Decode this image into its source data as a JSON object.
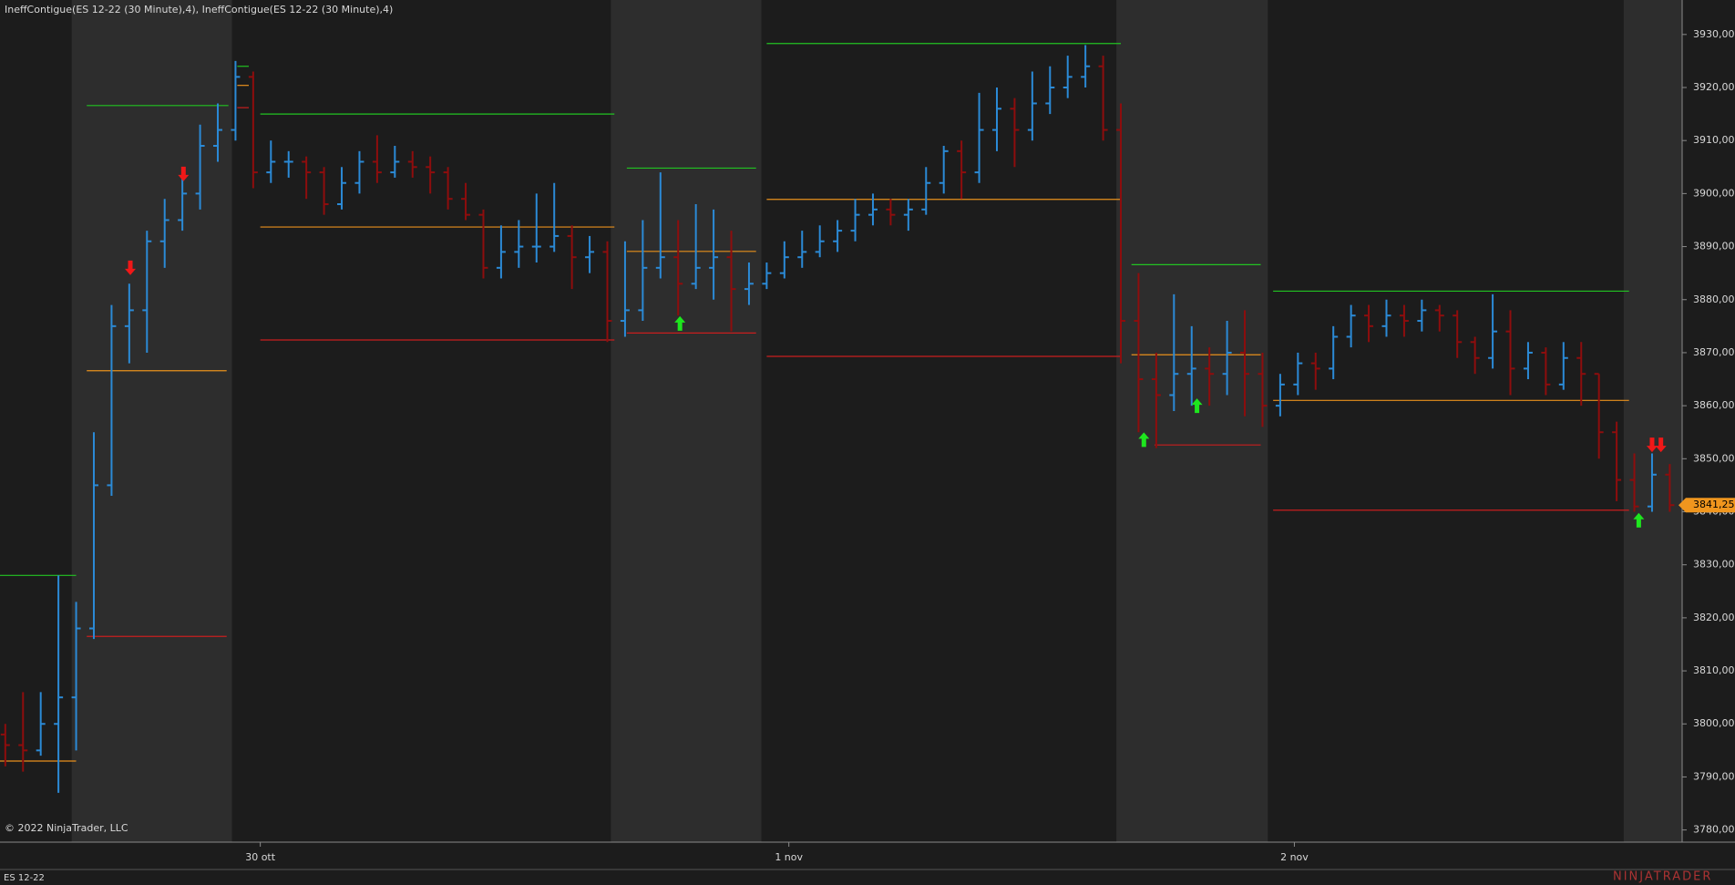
{
  "header": {
    "title": "IneffContigue(ES 12-22 (30 Minute),4), IneffContigue(ES 12-22 (30 Minute),4)",
    "copyright": "© 2022 NinjaTrader, LLC",
    "instrument": "ES 12-22",
    "logo": "NINJATRADER"
  },
  "chart_data": {
    "type": "ohlc",
    "up_color": "#2b8ad6",
    "down_color": "#8e0d0d",
    "xlim": [
      -0.3,
      94.7
    ],
    "ylim": [
      3777.7,
      3936.5
    ],
    "xticks": [
      {
        "value": 14.4,
        "label": "30 ott"
      },
      {
        "value": 44.25,
        "label": "1 nov"
      },
      {
        "value": 72.8,
        "label": "2 nov"
      }
    ],
    "yticks": [
      {
        "value": 3780,
        "label": "3780,00"
      },
      {
        "value": 3790,
        "label": "3790,00"
      },
      {
        "value": 3800,
        "label": "3800,00"
      },
      {
        "value": 3810,
        "label": "3810,00"
      },
      {
        "value": 3820,
        "label": "3820,00"
      },
      {
        "value": 3830,
        "label": "3830,00"
      },
      {
        "value": 3840,
        "label": "3840,00"
      },
      {
        "value": 3850,
        "label": "3850,00"
      },
      {
        "value": 3860,
        "label": "3860,00"
      },
      {
        "value": 3870,
        "label": "3870,00"
      },
      {
        "value": 3880,
        "label": "3880,00"
      },
      {
        "value": 3890,
        "label": "3890,00"
      },
      {
        "value": 3900,
        "label": "3900,00"
      },
      {
        "value": 3910,
        "label": "3910,00"
      },
      {
        "value": 3920,
        "label": "3920,00"
      },
      {
        "value": 3930,
        "label": "3930,00"
      }
    ],
    "last_price": {
      "value": 3841.25,
      "label": "3841,25"
    },
    "bands": [
      [
        3.75,
        12.8
      ],
      [
        34.2,
        42.7
      ],
      [
        62.75,
        71.3
      ],
      [
        91.4,
        94.7
      ]
    ],
    "ohlc": [
      [
        3798,
        3800,
        3792,
        3796
      ],
      [
        3796,
        3806,
        3791,
        3795
      ],
      [
        3795,
        3806,
        3794,
        3800
      ],
      [
        3800,
        3828,
        3787,
        3805
      ],
      [
        3805,
        3823,
        3795,
        3818
      ],
      [
        3818,
        3855,
        3816,
        3845
      ],
      [
        3845,
        3879,
        3843,
        3875
      ],
      [
        3875,
        3883,
        3868,
        3878
      ],
      [
        3878,
        3893,
        3870,
        3891
      ],
      [
        3891,
        3899,
        3886,
        3895
      ],
      [
        3895,
        3903,
        3893,
        3900
      ],
      [
        3900,
        3913,
        3897,
        3909
      ],
      [
        3909,
        3917,
        3906,
        3912
      ],
      [
        3912,
        3925,
        3910,
        3922
      ],
      [
        3922,
        3923,
        3901,
        3904
      ],
      [
        3904,
        3910,
        3902,
        3906
      ],
      [
        3906,
        3908,
        3903,
        3906
      ],
      [
        3906,
        3907,
        3899,
        3904
      ],
      [
        3904,
        3905,
        3896,
        3898
      ],
      [
        3898,
        3905,
        3897,
        3902
      ],
      [
        3902,
        3908,
        3900,
        3906
      ],
      [
        3906,
        3911,
        3902,
        3904
      ],
      [
        3904,
        3909,
        3903,
        3906
      ],
      [
        3906,
        3908,
        3903,
        3905
      ],
      [
        3905,
        3907,
        3900,
        3904
      ],
      [
        3904,
        3905,
        3897,
        3899
      ],
      [
        3899,
        3902,
        3895,
        3896
      ],
      [
        3896,
        3897,
        3884,
        3886
      ],
      [
        3886,
        3894,
        3884,
        3889
      ],
      [
        3889,
        3895,
        3886,
        3890
      ],
      [
        3890,
        3900,
        3887,
        3890
      ],
      [
        3890,
        3902,
        3889,
        3892
      ],
      [
        3892,
        3894,
        3882,
        3888
      ],
      [
        3888,
        3892,
        3885,
        3889
      ],
      [
        3889,
        3891,
        3872,
        3876
      ],
      [
        3876,
        3891,
        3873,
        3878
      ],
      [
        3878,
        3895,
        3876,
        3886
      ],
      [
        3886,
        3904,
        3884,
        3888
      ],
      [
        3888,
        3895,
        3877,
        3883
      ],
      [
        3883,
        3898,
        3882,
        3886
      ],
      [
        3886,
        3897,
        3880,
        3888
      ],
      [
        3888,
        3893,
        3874,
        3882
      ],
      [
        3882,
        3887,
        3879,
        3883
      ],
      [
        3883,
        3887,
        3882,
        3885
      ],
      [
        3885,
        3891,
        3884,
        3888
      ],
      [
        3888,
        3893,
        3886,
        3889
      ],
      [
        3889,
        3894,
        3888,
        3891
      ],
      [
        3891,
        3895,
        3889,
        3893
      ],
      [
        3893,
        3899,
        3891,
        3896
      ],
      [
        3896,
        3900,
        3894,
        3897
      ],
      [
        3897,
        3899,
        3894,
        3896
      ],
      [
        3896,
        3899,
        3893,
        3897
      ],
      [
        3897,
        3905,
        3896,
        3902
      ],
      [
        3902,
        3909,
        3900,
        3908
      ],
      [
        3908,
        3910,
        3899,
        3904
      ],
      [
        3904,
        3919,
        3902,
        3912
      ],
      [
        3912,
        3920,
        3908,
        3916
      ],
      [
        3916,
        3918,
        3905,
        3912
      ],
      [
        3912,
        3923,
        3910,
        3917
      ],
      [
        3917,
        3924,
        3915,
        3920
      ],
      [
        3920,
        3926,
        3918,
        3922
      ],
      [
        3922,
        3928,
        3920,
        3924
      ],
      [
        3924,
        3926,
        3910,
        3912
      ],
      [
        3912,
        3917,
        3868,
        3876
      ],
      [
        3876,
        3885,
        3855,
        3865
      ],
      [
        3865,
        3870,
        3852,
        3862
      ],
      [
        3862,
        3881,
        3859,
        3866
      ],
      [
        3866,
        3875,
        3860,
        3867
      ],
      [
        3867,
        3871,
        3860,
        3866
      ],
      [
        3866,
        3876,
        3862,
        3870
      ],
      [
        3870,
        3878,
        3858,
        3866
      ],
      [
        3866,
        3870,
        3856,
        3860
      ],
      [
        3860,
        3866,
        3858,
        3864
      ],
      [
        3864,
        3870,
        3862,
        3868
      ],
      [
        3868,
        3870,
        3863,
        3867
      ],
      [
        3867,
        3875,
        3865,
        3873
      ],
      [
        3873,
        3879,
        3871,
        3877
      ],
      [
        3877,
        3879,
        3872,
        3875
      ],
      [
        3875,
        3880,
        3873,
        3877
      ],
      [
        3877,
        3879,
        3873,
        3876
      ],
      [
        3876,
        3880,
        3874,
        3878
      ],
      [
        3878,
        3879,
        3874,
        3877
      ],
      [
        3877,
        3878,
        3869,
        3872
      ],
      [
        3872,
        3873,
        3866,
        3869
      ],
      [
        3869,
        3881,
        3867,
        3874
      ],
      [
        3874,
        3878,
        3862,
        3867
      ],
      [
        3867,
        3872,
        3865,
        3870
      ],
      [
        3870,
        3871,
        3862,
        3864
      ],
      [
        3864,
        3872,
        3863,
        3869
      ],
      [
        3869,
        3872,
        3860,
        3866
      ],
      [
        3866,
        3866,
        3850,
        3855
      ],
      [
        3855,
        3857,
        3842,
        3846
      ],
      [
        3846,
        3851,
        3840,
        3841
      ],
      [
        3841,
        3851,
        3840,
        3847
      ],
      [
        3847,
        3849,
        3840,
        3841.25
      ]
    ],
    "levels": [
      {
        "color": "#22c322",
        "from": -0.3,
        "to": 4,
        "price": 3828
      },
      {
        "color": "#e8901c",
        "from": -0.3,
        "to": 4,
        "price": 3793
      },
      {
        "color": "#22c322",
        "from": 4.6,
        "to": 12.6,
        "price": 3916.6
      },
      {
        "color": "#e8901c",
        "from": 4.6,
        "to": 12.5,
        "price": 3866.6
      },
      {
        "color": "#c81e1e",
        "from": 4.6,
        "to": 12.5,
        "price": 3816.5
      },
      {
        "color": "#22c322",
        "from": 13.1,
        "to": 13.75,
        "price": 3924
      },
      {
        "color": "#e8901c",
        "from": 13.1,
        "to": 13.75,
        "price": 3920.4
      },
      {
        "color": "#c81e1e",
        "from": 13.1,
        "to": 13.75,
        "price": 3916.2
      },
      {
        "color": "#22c322",
        "from": 14.4,
        "to": 34.4,
        "price": 3915
      },
      {
        "color": "#e8901c",
        "from": 14.4,
        "to": 34.4,
        "price": 3893.7
      },
      {
        "color": "#c81e1e",
        "from": 14.4,
        "to": 34.4,
        "price": 3872.4
      },
      {
        "color": "#22c322",
        "from": 35.1,
        "to": 42.4,
        "price": 3904.8
      },
      {
        "color": "#e8901c",
        "from": 35.1,
        "to": 42.4,
        "price": 3889.1
      },
      {
        "color": "#c81e1e",
        "from": 35.1,
        "to": 42.4,
        "price": 3873.7
      },
      {
        "color": "#22c322",
        "from": 43,
        "to": 63,
        "price": 3928.3
      },
      {
        "color": "#e8901c",
        "from": 43,
        "to": 63,
        "price": 3898.9
      },
      {
        "color": "#c81e1e",
        "from": 43,
        "to": 63,
        "price": 3869.3
      },
      {
        "color": "#22c322",
        "from": 63.6,
        "to": 70.9,
        "price": 3886.6
      },
      {
        "color": "#e8901c",
        "from": 63.6,
        "to": 70.9,
        "price": 3869.6
      },
      {
        "color": "#c81e1e",
        "from": 64.9,
        "to": 70.9,
        "price": 3852.6
      },
      {
        "color": "#22c322",
        "from": 71.6,
        "to": 91.7,
        "price": 3881.6
      },
      {
        "color": "#e8901c",
        "from": 71.6,
        "to": 91.7,
        "price": 3861
      },
      {
        "color": "#c81e1e",
        "from": 71.6,
        "to": 91.7,
        "price": 3840.3
      }
    ],
    "signals": [
      {
        "dir": "down",
        "x": 7.06,
        "price": 3886
      },
      {
        "dir": "down",
        "x": 10.06,
        "price": 3903.7
      },
      {
        "dir": "up",
        "x": 38.1,
        "price": 3875.5
      },
      {
        "dir": "up",
        "x": 64.3,
        "price": 3853.6
      },
      {
        "dir": "up",
        "x": 67.3,
        "price": 3860
      },
      {
        "dir": "up",
        "x": 92.25,
        "price": 3838.4
      },
      {
        "dir": "down",
        "x": 93,
        "price": 3852.6
      },
      {
        "dir": "down",
        "x": 93.5,
        "price": 3852.6
      }
    ]
  }
}
